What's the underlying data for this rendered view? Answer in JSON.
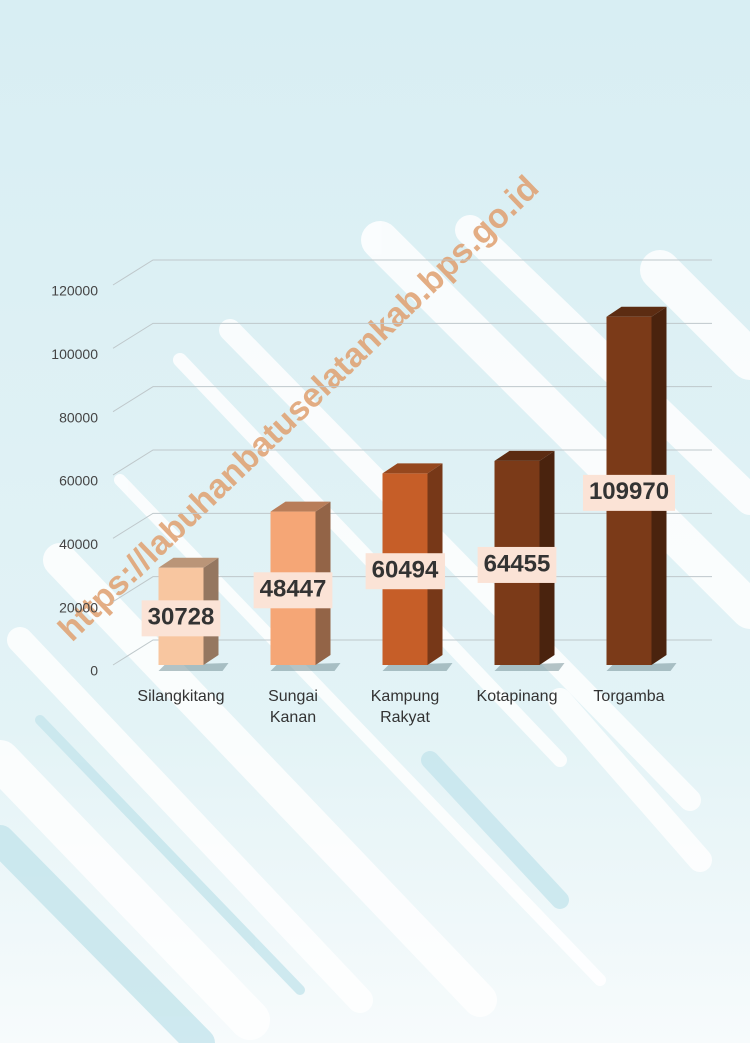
{
  "watermark": "https://labuhanbatuselatankab.bps.go.id",
  "chart_data": {
    "type": "bar3d",
    "categories": [
      "Silangkitang",
      "Sungai Kanan",
      "Kampung Rakyat",
      "Kotapinang",
      "Torgamba"
    ],
    "values": [
      30728,
      48447,
      60494,
      64455,
      109970
    ],
    "colors": [
      "#f8c6a0",
      "#f5a676",
      "#c65e28",
      "#7b3a18",
      "#7b3a18"
    ],
    "ylim": [
      0,
      120000
    ],
    "yticks": [
      0,
      20000,
      40000,
      60000,
      80000,
      100000,
      120000
    ],
    "grid": true
  }
}
